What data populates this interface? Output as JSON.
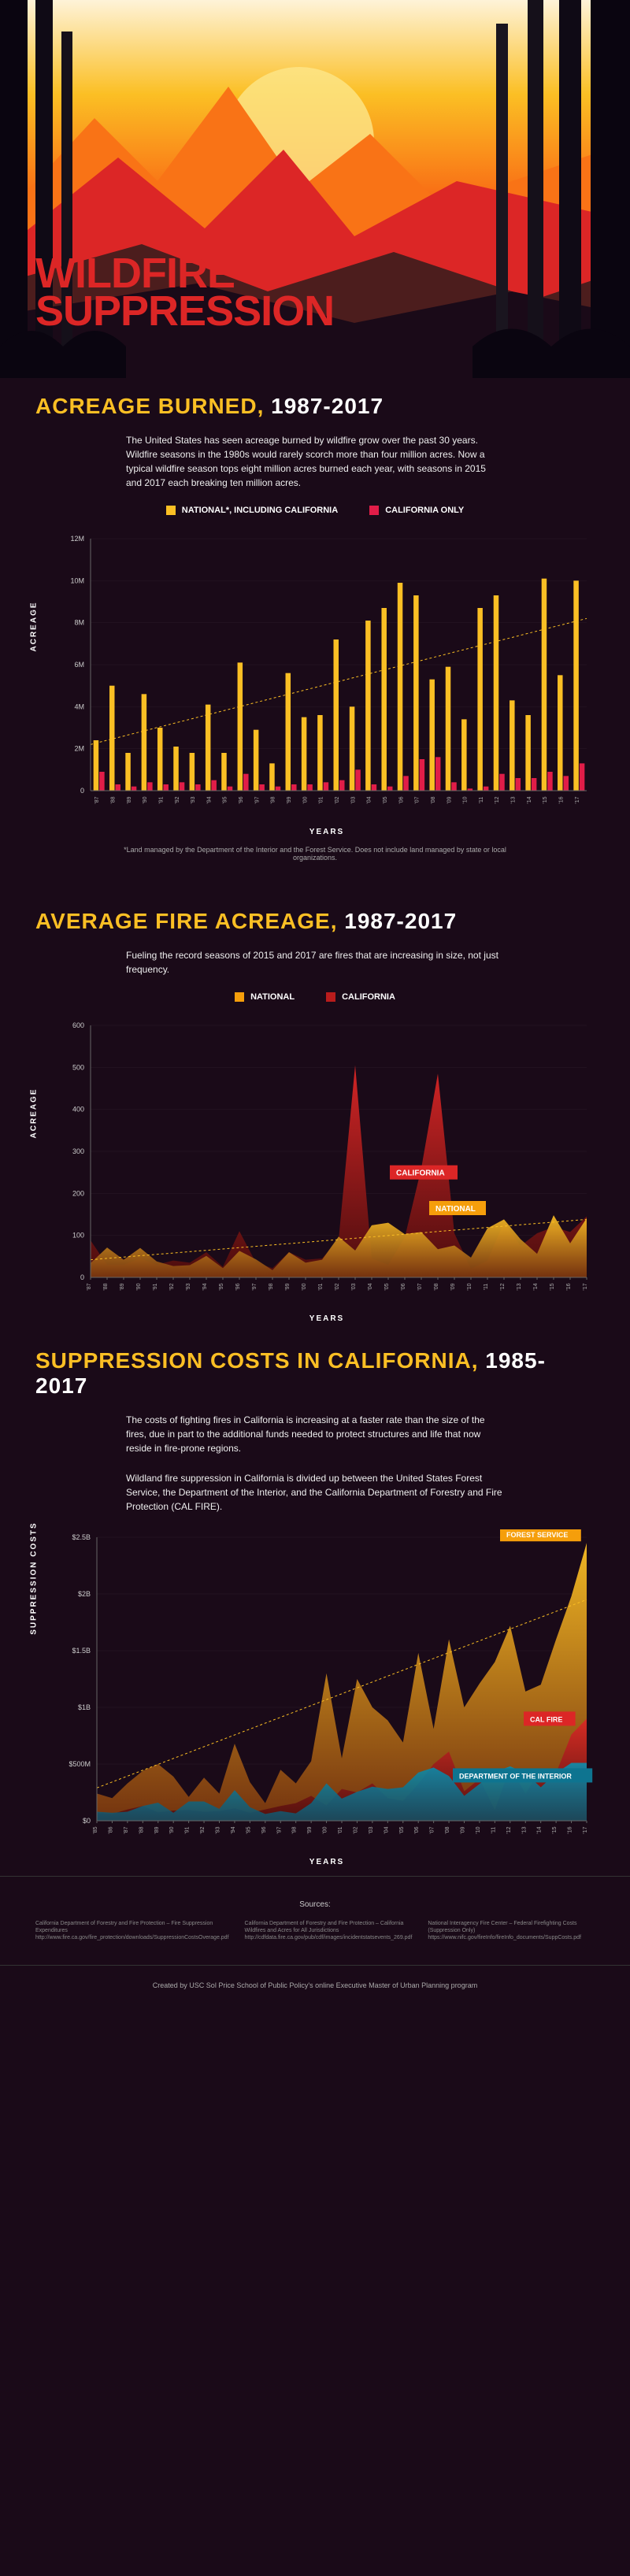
{
  "hero": {
    "title_line1": "WILDFIRE",
    "title_line2": "SUPPRESSION"
  },
  "section1": {
    "title": "ACREAGE BURNED,",
    "years_text": "1987-2017",
    "description": "The United States has seen acreage burned by wildfire grow over the past 30 years. Wildfire seasons in the 1980s would rarely scorch more than four million acres. Now a typical wildfire season tops eight million acres burned each year, with seasons in 2015 and 2017 each breaking ten million acres.",
    "legend": [
      {
        "label": "NATIONAL*, INCLUDING CALIFORNIA",
        "color": "#fbbf24"
      },
      {
        "label": "CALIFORNIA ONLY",
        "color": "#e11d48"
      }
    ],
    "chart": {
      "type": "bar",
      "y_label": "ACREAGE",
      "x_label": "YEARS",
      "y_ticks": [
        "0",
        "2M",
        "4M",
        "6M",
        "8M",
        "10M",
        "12M"
      ],
      "y_max": 12,
      "year_start": 1987,
      "year_end": 2017,
      "national": [
        2.4,
        5.0,
        1.8,
        4.6,
        3.0,
        2.1,
        1.8,
        4.1,
        1.8,
        6.1,
        2.9,
        1.3,
        5.6,
        3.5,
        3.6,
        7.2,
        4.0,
        8.1,
        8.7,
        9.9,
        9.3,
        5.3,
        5.9,
        3.4,
        8.7,
        9.3,
        4.3,
        3.6,
        10.1,
        5.5,
        10.0
      ],
      "california": [
        0.9,
        0.3,
        0.2,
        0.4,
        0.3,
        0.4,
        0.3,
        0.5,
        0.2,
        0.8,
        0.3,
        0.2,
        0.3,
        0.3,
        0.4,
        0.5,
        1.0,
        0.3,
        0.2,
        0.7,
        1.5,
        1.6,
        0.4,
        0.1,
        0.2,
        0.8,
        0.6,
        0.6,
        0.9,
        0.7,
        1.3
      ],
      "trend_start": 2.2,
      "trend_end": 8.2,
      "background": "#1a0a18",
      "grid_color": "#2a1a28"
    },
    "footnote": "*Land managed by the Department of the Interior and the Forest Service. Does not include land managed by state or local organizations."
  },
  "section2": {
    "title": "AVERAGE FIRE ACREAGE,",
    "years_text": "1987-2017",
    "description": "Fueling the record seasons of 2015 and 2017 are fires that are increasing in size, not just frequency.",
    "legend": [
      {
        "label": "NATIONAL",
        "color": "#f59e0b"
      },
      {
        "label": "CALIFORNIA",
        "color": "#b91c1c"
      }
    ],
    "chart": {
      "type": "area",
      "y_label": "ACREAGE",
      "x_label": "YEARS",
      "y_ticks": [
        "0",
        "100",
        "200",
        "300",
        "400",
        "500",
        "600"
      ],
      "y_max": 600,
      "year_start": 1987,
      "year_end": 2017,
      "california": [
        88,
        30,
        30,
        45,
        30,
        40,
        35,
        60,
        25,
        110,
        35,
        22,
        60,
        42,
        45,
        90,
        505,
        45,
        30,
        95,
        260,
        485,
        105,
        20,
        40,
        130,
        75,
        105,
        120,
        108,
        145
      ],
      "national": [
        34,
        71,
        42,
        70,
        38,
        27,
        29,
        51,
        22,
        63,
        43,
        17,
        60,
        35,
        42,
        97,
        64,
        124,
        130,
        103,
        108,
        67,
        76,
        47,
        117,
        138,
        91,
        56,
        148,
        81,
        141
      ],
      "trend_start": 42,
      "trend_end": 138,
      "badge_ca": "CALIFORNIA",
      "badge_ca_color": "#dc2626",
      "badge_nat": "NATIONAL",
      "badge_nat_color": "#f59e0b"
    }
  },
  "section3": {
    "title": "SUPPRESSION COSTS IN CALIFORNIA,",
    "years_text": "1985-2017",
    "description1": "The costs of fighting fires in California is increasing at a faster rate than the size of the fires, due in part to the additional funds needed to protect structures and life that now reside in fire-prone regions.",
    "description2": "Wildland fire suppression in California is divided up between the United States Forest Service, the Department of the Interior, and the California Department of Forestry and Fire Protection (CAL FIRE).",
    "chart": {
      "type": "area",
      "y_label": "SUPPRESSION COSTS",
      "x_label": "YEARS",
      "y_ticks": [
        "$0",
        "$500M",
        "$1B",
        "$1.5B",
        "$2B",
        "$2.5B"
      ],
      "y_max": 2500,
      "year_start": 1985,
      "year_end": 2017,
      "forest_service": [
        240,
        200,
        330,
        440,
        500,
        390,
        210,
        380,
        240,
        680,
        340,
        155,
        450,
        330,
        525,
        1300,
        550,
        1250,
        1000,
        885,
        690,
        1480,
        810,
        1600,
        1000,
        1210,
        1400,
        1720,
        1140,
        1200,
        1600,
        1980,
        2450
      ],
      "cal_fire": [
        70,
        60,
        100,
        130,
        75,
        90,
        95,
        80,
        85,
        110,
        70,
        100,
        130,
        155,
        220,
        135,
        280,
        250,
        330,
        200,
        175,
        325,
        500,
        610,
        260,
        370,
        95,
        475,
        240,
        450,
        420,
        760,
        900
      ],
      "doi": [
        80,
        70,
        80,
        130,
        160,
        70,
        170,
        170,
        105,
        270,
        120,
        60,
        85,
        65,
        155,
        330,
        195,
        255,
        300,
        280,
        295,
        425,
        470,
        395,
        220,
        325,
        430,
        480,
        420,
        295,
        420,
        510,
        510
      ],
      "badge_fs": "FOREST SERVICE",
      "badge_fs_color": "#f59e0b",
      "badge_cf": "CAL FIRE",
      "badge_cf_color": "#dc2626",
      "badge_doi": "DEPARTMENT OF THE INTERIOR",
      "badge_doi_color": "#0e7490",
      "trend_start": 290,
      "trend_end": 1950
    }
  },
  "sources": {
    "title": "Sources:",
    "cols": [
      "California Department of Forestry and Fire Protection – Fire Suppression Expenditures http://www.fire.ca.gov/fire_protection/downloads/SuppressionCostsOverage.pdf",
      "California Department of Forestry and Fire Protection – California Wildfires and Acres for All Jurisdictions http://cdfdata.fire.ca.gov/pub/cdf/images/incidentstatsevents_269.pdf",
      "National Interagency Fire Center – Federal Firefighting Costs (Suppression Only) https://www.nifc.gov/fireInfo/fireInfo_documents/SuppCosts.pdf"
    ]
  },
  "credit": "Created by USC Sol Price School of Public Policy's online Executive Master of Urban Planning program"
}
